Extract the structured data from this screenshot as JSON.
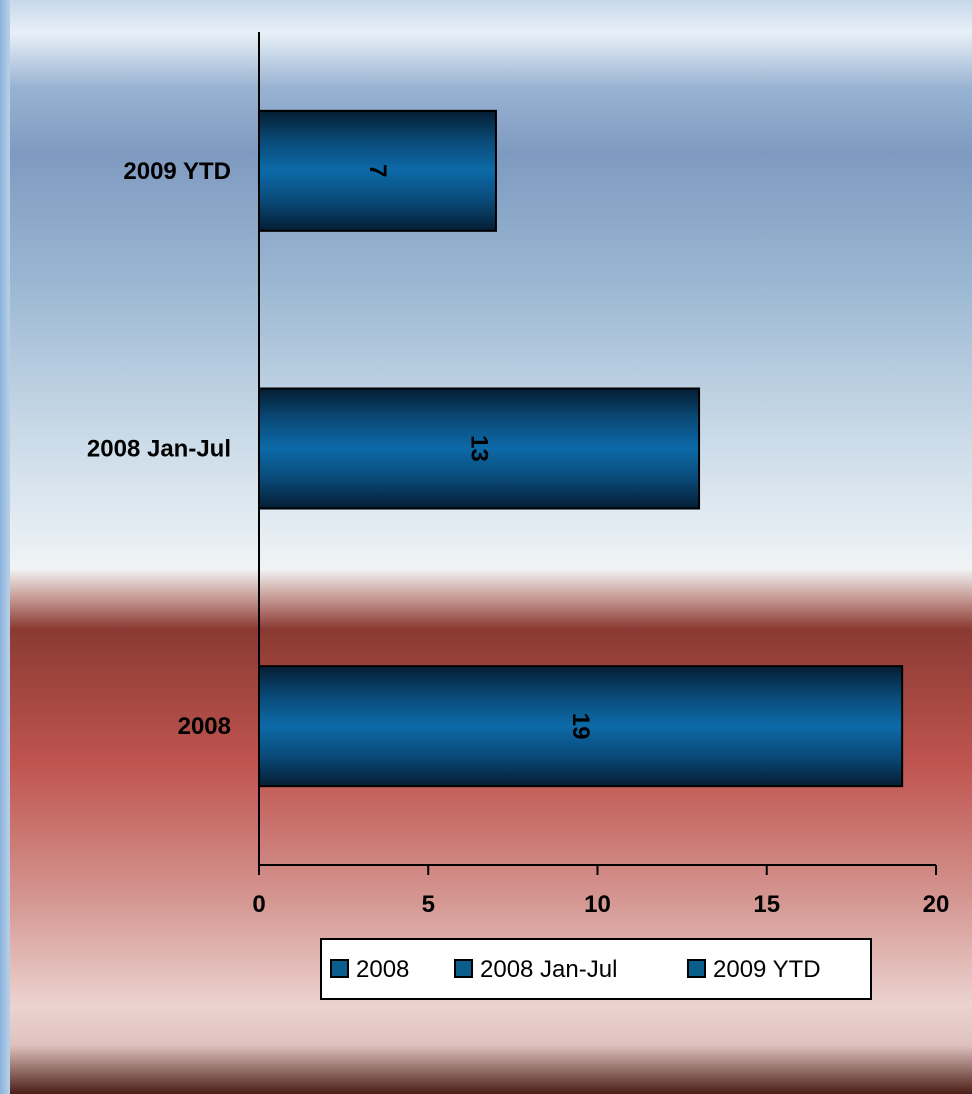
{
  "chart_data": {
    "type": "bar",
    "orientation": "horizontal",
    "categories": [
      "2008",
      "2008 Jan-Jul",
      "2009 YTD"
    ],
    "values": [
      19,
      13,
      7
    ],
    "data_labels": [
      "19",
      "13",
      "7"
    ],
    "xlim": [
      0,
      20
    ],
    "x_ticks": [
      "0",
      "5",
      "10",
      "15",
      "20"
    ],
    "grid": false,
    "legend": {
      "placement": "bottom",
      "entries": [
        "2008",
        "2008 Jan-Jul",
        "2009 YTD"
      ]
    },
    "colors": {
      "bar": "#0a5e8c",
      "bar_edge": "#000000"
    }
  }
}
